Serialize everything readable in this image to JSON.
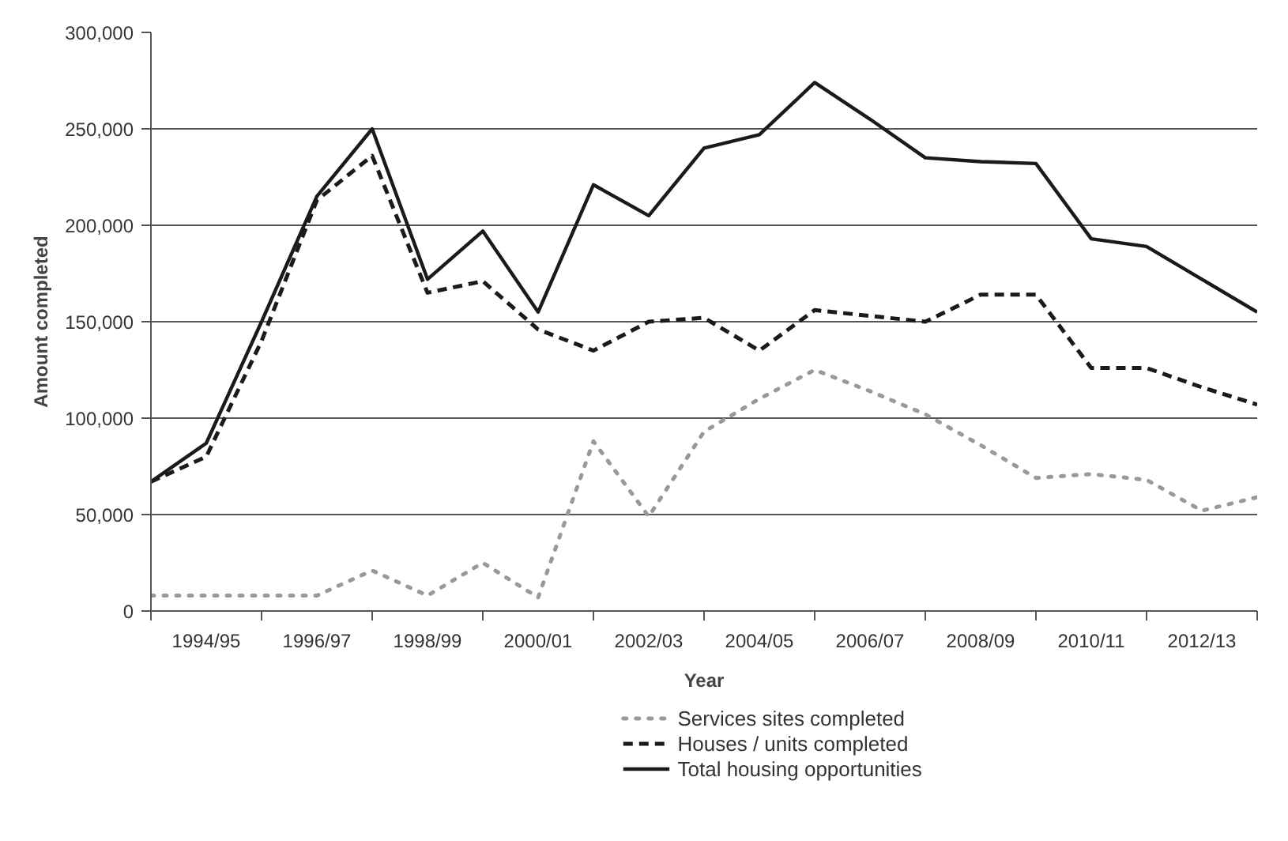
{
  "chart_data": {
    "type": "line",
    "xlabel": "Year",
    "ylabel": "Amount completed",
    "categories": [
      null,
      "1994/95",
      null,
      "1996/97",
      null,
      "1998/99",
      null,
      "2000/01",
      null,
      "2002/03",
      null,
      "2004/05",
      null,
      "2006/07",
      null,
      "2008/09",
      null,
      "2010/11",
      null,
      "2012/13",
      null
    ],
    "series": [
      {
        "name": "Services sites completed",
        "color": "#999999",
        "line_style": "dotted",
        "values": [
          8000,
          8000,
          8000,
          8000,
          21000,
          8000,
          25000,
          7000,
          88000,
          49000,
          93000,
          110000,
          125000,
          114000,
          102000,
          86000,
          69000,
          71000,
          68000,
          52000,
          59000
        ]
      },
      {
        "name": "Houses / units completed",
        "color": "#1a1a1a",
        "line_style": "dashed",
        "values": [
          67000,
          80000,
          140000,
          213000,
          236000,
          165000,
          171000,
          146000,
          135000,
          150000,
          152000,
          135000,
          156000,
          153000,
          150000,
          164000,
          164000,
          126000,
          126000,
          116000,
          107000
        ]
      },
      {
        "name": "Total housing opportunities",
        "color": "#1a1a1a",
        "line_style": "solid",
        "values": [
          67000,
          87000,
          150000,
          215000,
          250000,
          172000,
          197000,
          155000,
          221000,
          205000,
          240000,
          247000,
          274000,
          255000,
          235000,
          233000,
          232000,
          193000,
          189000,
          172000,
          155000
        ]
      }
    ],
    "ylim": [
      0,
      300000
    ],
    "yticks": [
      {
        "value": 0,
        "label": "0"
      },
      {
        "value": 50000,
        "label": "50,000"
      },
      {
        "value": 100000,
        "label": "100,000"
      },
      {
        "value": 150000,
        "label": "150,000"
      },
      {
        "value": 200000,
        "label": "200,000"
      },
      {
        "value": 250000,
        "label": "250,000"
      },
      {
        "value": 300000,
        "label": "300,000"
      }
    ],
    "grid": "y",
    "legend": "bottom"
  }
}
